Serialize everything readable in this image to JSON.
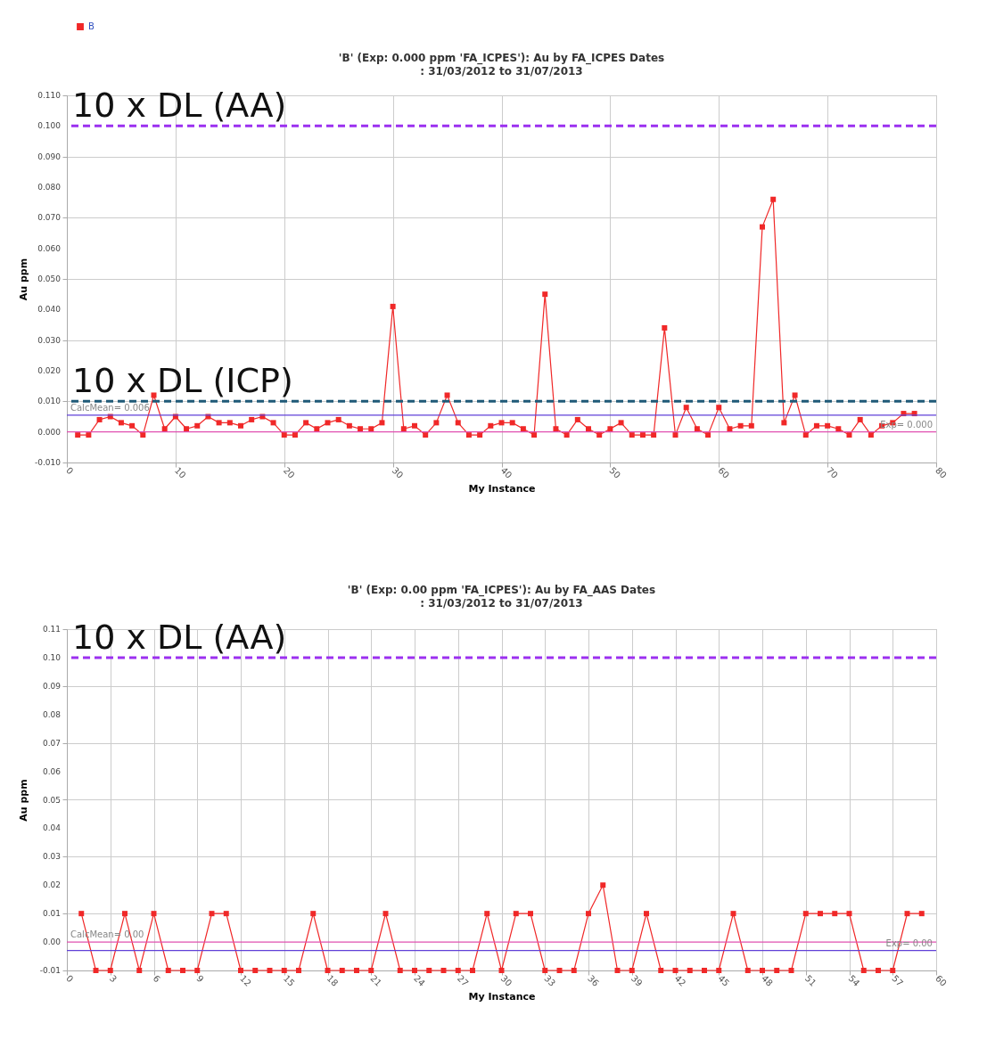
{
  "chart_data": [
    {
      "type": "line",
      "title": "'B' (Exp: 0.000 ppm 'FA_ICPES'): Au by FA_ICPES Dates",
      "subtitle": ": 31/03/2012 to 31/07/2013",
      "xlabel": "My Instance",
      "ylabel": "Au ppm",
      "x": [
        1,
        2,
        3,
        4,
        5,
        6,
        7,
        8,
        9,
        10,
        11,
        12,
        13,
        14,
        15,
        16,
        17,
        18,
        19,
        20,
        21,
        22,
        23,
        24,
        25,
        26,
        27,
        28,
        29,
        30,
        31,
        32,
        33,
        34,
        35,
        36,
        37,
        38,
        39,
        40,
        41,
        42,
        43,
        44,
        45,
        46,
        47,
        48,
        49,
        50,
        51,
        52,
        53,
        54,
        55,
        56,
        57,
        58,
        59,
        60,
        61,
        62,
        63,
        64,
        65,
        66,
        67,
        68,
        69,
        70,
        71,
        72,
        73,
        74,
        75,
        76,
        77,
        78
      ],
      "series": [
        {
          "name": "B",
          "color": "#f02828",
          "values": [
            -0.001,
            -0.001,
            0.004,
            0.005,
            0.003,
            0.002,
            -0.001,
            0.012,
            0.001,
            0.005,
            0.001,
            0.002,
            0.005,
            0.003,
            0.003,
            0.002,
            0.004,
            0.005,
            0.003,
            -0.001,
            -0.001,
            0.003,
            0.001,
            0.003,
            0.004,
            0.002,
            0.001,
            0.001,
            0.003,
            0.041,
            0.001,
            0.002,
            -0.001,
            0.003,
            0.012,
            0.003,
            -0.001,
            -0.001,
            0.002,
            0.003,
            0.003,
            0.001,
            -0.001,
            0.045,
            0.001,
            -0.001,
            0.004,
            0.001,
            -0.001,
            0.001,
            0.003,
            -0.001,
            -0.001,
            -0.001,
            0.034,
            -0.001,
            0.008,
            0.001,
            -0.001,
            0.008,
            0.001,
            0.002,
            0.002,
            0.067,
            0.076,
            0.003,
            0.012,
            -0.001,
            0.002,
            0.002,
            0.001,
            -0.001,
            0.004,
            -0.001,
            0.002,
            0.003,
            0.006,
            0.006
          ]
        }
      ],
      "xlim": [
        0,
        80
      ],
      "xticks": [
        0,
        10,
        20,
        30,
        40,
        50,
        60,
        70,
        80
      ],
      "ylim": [
        -0.01,
        0.11
      ],
      "yticks": [
        {
          "value": -0.01,
          "label": "-0.010"
        },
        {
          "value": 0,
          "label": "0.000"
        },
        {
          "value": 0.01,
          "label": "0.010"
        },
        {
          "value": 0.02,
          "label": "0.020"
        },
        {
          "value": 0.03,
          "label": "0.030"
        },
        {
          "value": 0.04,
          "label": "0.040"
        },
        {
          "value": 0.05,
          "label": "0.050"
        },
        {
          "value": 0.06,
          "label": "0.060"
        },
        {
          "value": 0.07,
          "label": "0.070"
        },
        {
          "value": 0.08,
          "label": "0.080"
        },
        {
          "value": 0.09,
          "label": "0.090"
        },
        {
          "value": 0.1,
          "label": "0.100"
        },
        {
          "value": 0.11,
          "label": "0.110"
        }
      ],
      "ref_lines": [
        {
          "axis": "y",
          "value": 0.1,
          "label": "10 x DL (AA)",
          "color": "#9b30f0",
          "line_style": "dashed"
        },
        {
          "axis": "y",
          "value": 0.01,
          "label": "10 x DL (ICP)",
          "color": "#1f5a78",
          "line_style": "dashed"
        },
        {
          "axis": "y",
          "value": 0.0055,
          "label": "CalcMean= 0.006",
          "color": "#6040d8",
          "line_style": "solid"
        },
        {
          "axis": "y",
          "value": 0,
          "label": "Exp= 0.000",
          "color": "#e050b0",
          "line_style": "solid"
        }
      ],
      "grid": true,
      "legend": "top left",
      "marker": "square"
    },
    {
      "type": "line",
      "title": "'B' (Exp: 0.00 ppm 'FA_ICPES'): Au by FA_AAS Dates",
      "subtitle": ": 31/03/2012 to 31/07/2013",
      "xlabel": "My Instance",
      "ylabel": "Au ppm",
      "x": [
        1,
        2,
        3,
        4,
        5,
        6,
        7,
        8,
        9,
        10,
        11,
        12,
        13,
        14,
        15,
        16,
        17,
        18,
        19,
        20,
        21,
        22,
        23,
        24,
        25,
        26,
        27,
        28,
        29,
        30,
        31,
        32,
        33,
        34,
        35,
        36,
        37,
        38,
        39,
        40,
        41,
        42,
        43,
        44,
        45,
        46,
        47,
        48,
        49,
        50,
        51,
        52,
        53,
        54,
        55,
        56,
        57,
        58,
        59
      ],
      "series": [
        {
          "name": "B",
          "color": "#f02828",
          "values": [
            0.01,
            -0.01,
            -0.01,
            0.01,
            -0.01,
            0.01,
            -0.01,
            -0.01,
            -0.01,
            0.01,
            0.01,
            -0.01,
            -0.01,
            -0.01,
            -0.01,
            -0.01,
            0.01,
            -0.01,
            -0.01,
            -0.01,
            -0.01,
            0.01,
            -0.01,
            -0.01,
            -0.01,
            -0.01,
            -0.01,
            -0.01,
            0.01,
            -0.01,
            0.01,
            0.01,
            -0.01,
            -0.01,
            -0.01,
            0.01,
            0.02,
            -0.01,
            -0.01,
            0.01,
            -0.01,
            -0.01,
            -0.01,
            -0.01,
            -0.01,
            0.01,
            -0.01,
            -0.01,
            -0.01,
            -0.01,
            0.01,
            0.01,
            0.01,
            0.01,
            -0.01,
            -0.01,
            -0.01,
            0.01,
            0.01
          ]
        }
      ],
      "xlim": [
        0,
        60
      ],
      "xticks": [
        0,
        3,
        6,
        9,
        12,
        15,
        18,
        21,
        24,
        27,
        30,
        33,
        36,
        39,
        42,
        45,
        48,
        51,
        54,
        57,
        60
      ],
      "ylim": [
        -0.01,
        0.11
      ],
      "yticks": [
        -0.01,
        {
          "value": 0,
          "label": "0.00"
        },
        0.01,
        0.02,
        0.03,
        0.04,
        0.05,
        0.06,
        0.07,
        0.08,
        0.09,
        {
          "value": 0.1,
          "label": "0.10"
        },
        0.11
      ],
      "ref_lines": [
        {
          "axis": "y",
          "value": 0.1,
          "label": "10 x DL (AA)",
          "color": "#9b30f0",
          "line_style": "dashed"
        },
        {
          "axis": "y",
          "value": 0,
          "label": "CalcMean= 0.00",
          "color": "#e050b0",
          "line_style": "solid"
        },
        {
          "axis": "y",
          "value": -0.003,
          "label": "Exp= 0.00",
          "color": "#6040d8",
          "line_style": "solid"
        }
      ],
      "grid": true,
      "legend": "top left",
      "marker": "square"
    }
  ]
}
